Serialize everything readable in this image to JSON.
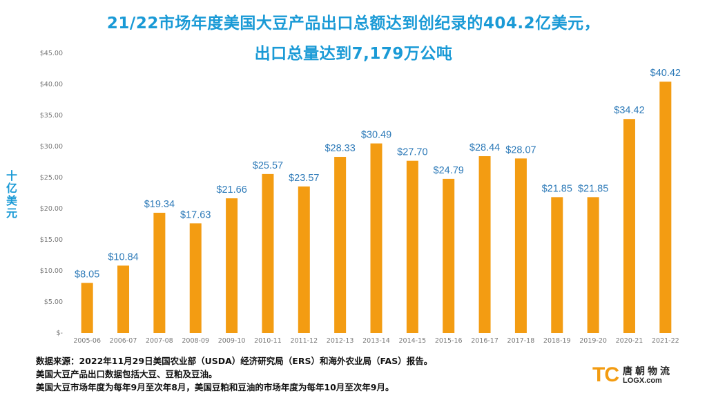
{
  "title_line1": "21/22市场年度美国大豆产品出口总额达到创纪录的404.2亿美元，",
  "title_line2": "出口总量达到7,179万公吨",
  "chart_data": {
    "type": "bar",
    "ylabel": "十亿美元",
    "ylim": [
      0,
      45
    ],
    "y_ticks": [
      0,
      5,
      10,
      15,
      20,
      25,
      30,
      35,
      40,
      45
    ],
    "y_tick_labels": [
      "$-",
      "$5.00",
      "$10.00",
      "$15.00",
      "$20.00",
      "$25.00",
      "$30.00",
      "$35.00",
      "$40.00",
      "$45.00"
    ],
    "categories": [
      "2005-06",
      "2006-07",
      "2007-08",
      "2008-09",
      "2009-10",
      "2010-11",
      "2011-12",
      "2012-13",
      "2013-14",
      "2014-15",
      "2015-16",
      "2016-17",
      "2017-18",
      "2018-19",
      "2019-20",
      "2020-21",
      "2021-22"
    ],
    "values": [
      8.05,
      10.84,
      19.34,
      17.63,
      21.66,
      25.57,
      23.57,
      28.33,
      30.49,
      27.7,
      24.79,
      28.44,
      28.07,
      21.85,
      21.85,
      34.42,
      40.42
    ],
    "data_labels": [
      "$8.05",
      "$10.84",
      "$19.34",
      "$17.63",
      "$21.66",
      "$25.57",
      "$23.57",
      "$28.33",
      "$30.49",
      "$27.70",
      "$24.79",
      "$28.44",
      "$28.07",
      "$21.85",
      "$21.85",
      "$34.42",
      "$40.42"
    ],
    "bar_color": "#f39c12",
    "label_color": "#2d7ab8",
    "grid": false,
    "legend": "none"
  },
  "notes": [
    "数据来源：2022年11月29日美国农业部（USDA）经济研究局（ERS）和海外农业局（FAS）报告。",
    "美国大豆产品出口数据包括大豆、豆粕及豆油。",
    "美国大豆市场年度为每年9月至次年8月，美国豆粕和豆油的市场年度为每年10月至次年9月。"
  ],
  "logo": {
    "mark": "TC",
    "cn": "唐朝物流",
    "en": "LOGX.com"
  }
}
